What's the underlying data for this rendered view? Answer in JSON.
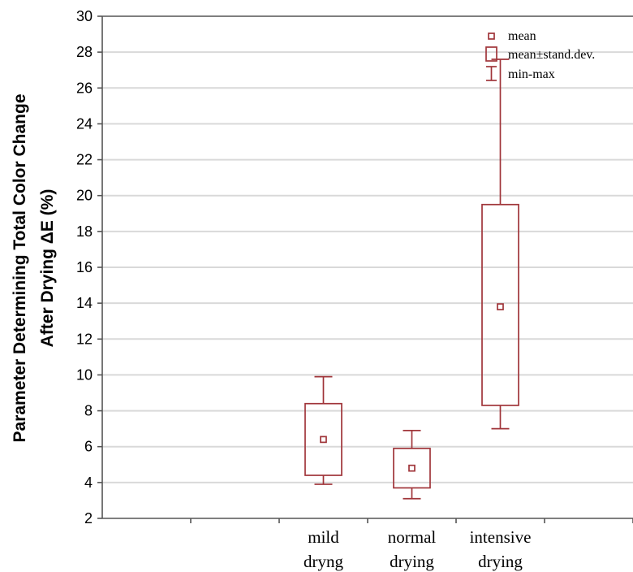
{
  "chart_data": {
    "type": "box",
    "ylabel_line1": "Parameter Determining Total Color Change",
    "ylabel_line2": "After Drying ΔE (%)",
    "ylim": [
      2,
      30
    ],
    "yticks": [
      2,
      4,
      6,
      8,
      10,
      12,
      14,
      16,
      18,
      20,
      22,
      24,
      26,
      28,
      30
    ],
    "grid": true,
    "series_color": "#a0353a",
    "categories": [
      {
        "label_line1": "mild",
        "label_line2": "dryng",
        "mean": 6.4,
        "sd_low": 4.4,
        "sd_high": 8.4,
        "min": 3.9,
        "max": 9.9
      },
      {
        "label_line1": "normal",
        "label_line2": "drying",
        "mean": 4.8,
        "sd_low": 3.7,
        "sd_high": 5.9,
        "min": 3.1,
        "max": 6.9
      },
      {
        "label_line1": "intensive",
        "label_line2": "drying",
        "mean": 13.8,
        "sd_low": 8.3,
        "sd_high": 19.5,
        "min": 7.0,
        "max": 27.6
      }
    ],
    "legend": {
      "position": "top-right",
      "items": [
        "mean",
        "mean±stand.dev.",
        "min-max"
      ]
    }
  }
}
